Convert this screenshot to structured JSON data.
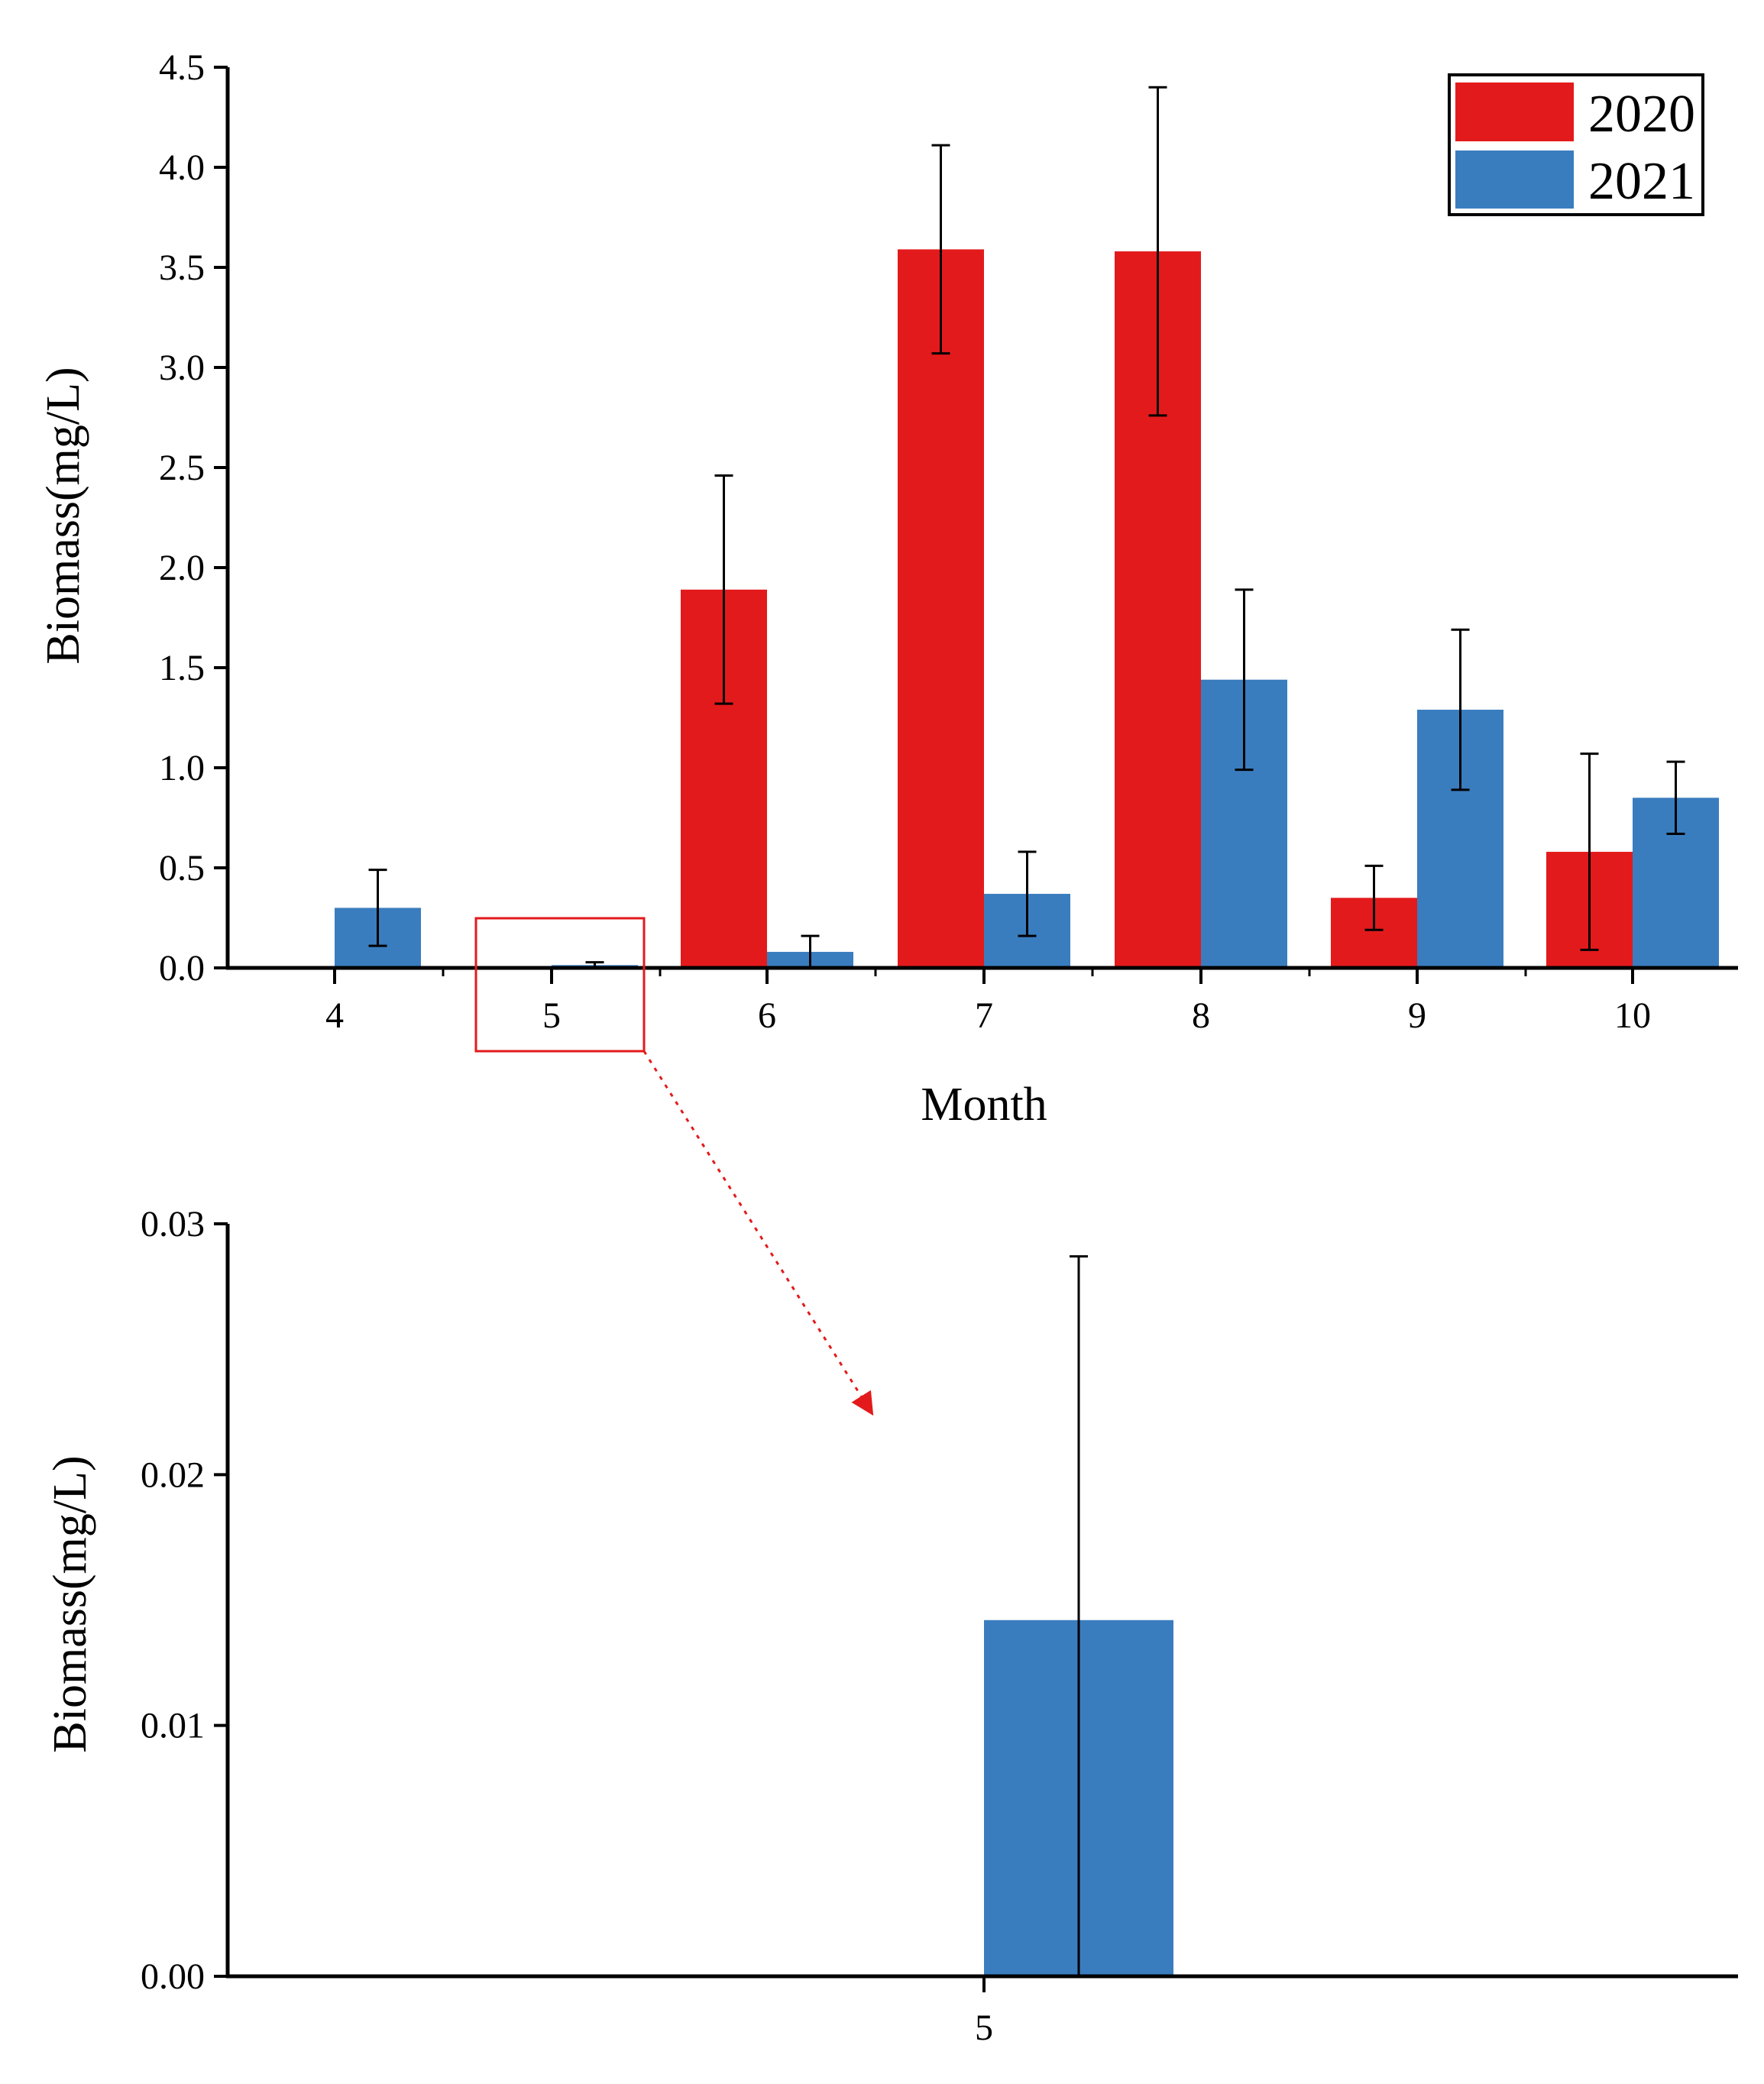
{
  "chart_data": [
    {
      "type": "bar",
      "ylabel": "Biomass(mg/L)",
      "xlabel": "Month",
      "categories": [
        "4",
        "5",
        "6",
        "7",
        "8",
        "9",
        "10"
      ],
      "ylim": [
        0,
        4.5
      ],
      "yticks": [
        "0.0",
        "0.5",
        "1.0",
        "1.5",
        "2.0",
        "2.5",
        "3.0",
        "3.5",
        "4.0",
        "4.5"
      ],
      "series": [
        {
          "name": "2020",
          "color": "#e31a1c",
          "values": [
            0,
            0,
            1.89,
            3.59,
            3.58,
            0.35,
            0.58
          ],
          "errors": [
            0,
            0,
            0.57,
            0.52,
            0.82,
            0.16,
            0.49
          ]
        },
        {
          "name": "2021",
          "color": "#3a7dbf",
          "values": [
            0.3,
            0.014,
            0.08,
            0.37,
            1.44,
            1.29,
            0.85
          ],
          "errors": [
            0.19,
            0.014,
            0.08,
            0.21,
            0.45,
            0.4,
            0.18
          ]
        }
      ],
      "legend_position": "top-right",
      "highlight_category": "5"
    },
    {
      "type": "bar",
      "ylabel": "Biomass(mg/L)",
      "categories": [
        "5"
      ],
      "ylim": [
        0,
        0.03
      ],
      "yticks": [
        "0.00",
        "0.01",
        "0.02",
        "0.03"
      ],
      "series": [
        {
          "name": "2021",
          "color": "#3a7dbf",
          "values": [
            0.0142
          ],
          "errors": [
            0.0145
          ]
        }
      ],
      "annotation": "zoomed view of month 5 (red box, arrow)"
    }
  ]
}
